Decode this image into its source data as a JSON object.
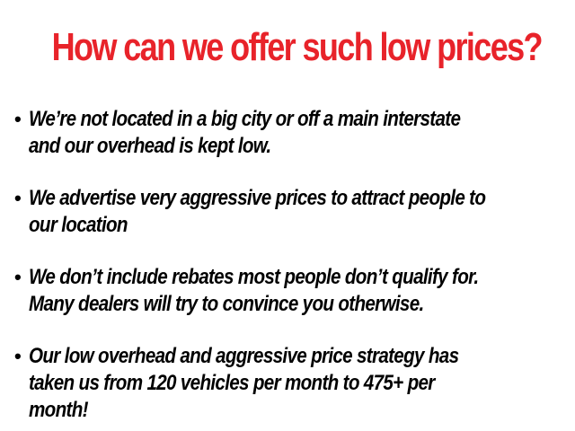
{
  "title": "How can we offer such low prices?",
  "bullets": [
    "We’re not located in a big city or off a main interstate and our overhead is kept low.",
    "We advertise very aggressive prices to attract people to our location",
    "We don’t include rebates most people don’t qualify for. Many dealers will try to convince you otherwise.",
    "Our low overhead and aggressive price strategy has taken us from 120 vehicles per month to 475+ per month!"
  ]
}
